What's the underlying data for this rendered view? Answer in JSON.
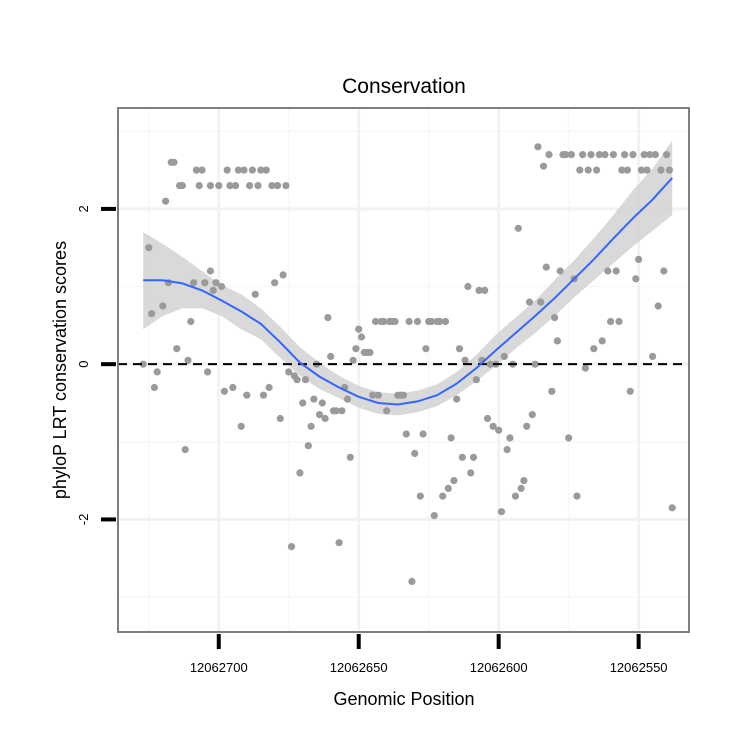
{
  "chart_data": {
    "type": "scatter",
    "title": "Conservation",
    "xlabel": "Genomic Position",
    "ylabel": "phyloP LRT conservation scores",
    "x_reversed": true,
    "xlim": [
      12062736,
      12062532
    ],
    "ylim": [
      -3.45,
      3.3
    ],
    "x_ticks": [
      {
        "value": 12062700,
        "label": "12062700"
      },
      {
        "value": 12062650,
        "label": "12062650"
      },
      {
        "value": 12062600,
        "label": "12062600"
      },
      {
        "value": 12062550,
        "label": "12062550"
      }
    ],
    "y_ticks": [
      {
        "value": -2,
        "label": "-2"
      },
      {
        "value": 0,
        "label": "0"
      },
      {
        "value": 2,
        "label": "2"
      }
    ],
    "reference_line": {
      "y": 0,
      "style": "dashed"
    },
    "points": [
      [
        12062727,
        0.0
      ],
      [
        12062725,
        1.5
      ],
      [
        12062724,
        0.65
      ],
      [
        12062723,
        -0.3
      ],
      [
        12062722,
        -0.1
      ],
      [
        12062720,
        0.75
      ],
      [
        12062719,
        2.1
      ],
      [
        12062718,
        1.05
      ],
      [
        12062717,
        2.6
      ],
      [
        12062716,
        2.6
      ],
      [
        12062715,
        0.2
      ],
      [
        12062714,
        2.3
      ],
      [
        12062713,
        2.3
      ],
      [
        12062712,
        -1.1
      ],
      [
        12062711,
        0.05
      ],
      [
        12062710,
        0.55
      ],
      [
        12062709,
        1.05
      ],
      [
        12062708,
        2.5
      ],
      [
        12062707,
        2.3
      ],
      [
        12062706,
        2.5
      ],
      [
        12062705,
        1.05
      ],
      [
        12062704,
        -0.1
      ],
      [
        12062703,
        2.3
      ],
      [
        12062703,
        1.2
      ],
      [
        12062702,
        0.95
      ],
      [
        12062701,
        1.05
      ],
      [
        12062700,
        2.3
      ],
      [
        12062699,
        1.0
      ],
      [
        12062698,
        -0.35
      ],
      [
        12062697,
        2.5
      ],
      [
        12062696,
        2.3
      ],
      [
        12062695,
        -0.3
      ],
      [
        12062694,
        2.3
      ],
      [
        12062693,
        2.5
      ],
      [
        12062692,
        -0.8
      ],
      [
        12062691,
        2.5
      ],
      [
        12062690,
        -0.4
      ],
      [
        12062689,
        2.3
      ],
      [
        12062688,
        2.5
      ],
      [
        12062687,
        0.9
      ],
      [
        12062686,
        2.3
      ],
      [
        12062685,
        2.5
      ],
      [
        12062684,
        -0.4
      ],
      [
        12062683,
        2.5
      ],
      [
        12062682,
        -0.3
      ],
      [
        12062681,
        2.3
      ],
      [
        12062680,
        1.05
      ],
      [
        12062679,
        2.3
      ],
      [
        12062678,
        -0.7
      ],
      [
        12062677,
        1.15
      ],
      [
        12062676,
        2.3
      ],
      [
        12062675,
        -0.1
      ],
      [
        12062674,
        -2.35
      ],
      [
        12062673,
        -0.15
      ],
      [
        12062672,
        -0.2
      ],
      [
        12062671,
        -1.4
      ],
      [
        12062670,
        -0.5
      ],
      [
        12062669,
        -0.2
      ],
      [
        12062668,
        -1.05
      ],
      [
        12062667,
        -0.8
      ],
      [
        12062666,
        -0.45
      ],
      [
        12062665,
        0.0
      ],
      [
        12062664,
        -0.65
      ],
      [
        12062663,
        -0.5
      ],
      [
        12062662,
        -0.7
      ],
      [
        12062661,
        0.6
      ],
      [
        12062660,
        0.1
      ],
      [
        12062659,
        -0.6
      ],
      [
        12062658,
        -0.6
      ],
      [
        12062657,
        -2.3
      ],
      [
        12062656,
        -0.6
      ],
      [
        12062655,
        -0.3
      ],
      [
        12062654,
        -0.45
      ],
      [
        12062653,
        -1.2
      ],
      [
        12062652,
        0.05
      ],
      [
        12062651,
        0.2
      ],
      [
        12062650,
        0.45
      ],
      [
        12062649,
        0.35
      ],
      [
        12062648,
        0.15
      ],
      [
        12062647,
        0.15
      ],
      [
        12062646,
        0.15
      ],
      [
        12062645,
        -0.4
      ],
      [
        12062644,
        0.55
      ],
      [
        12062643,
        -0.4
      ],
      [
        12062642,
        0.55
      ],
      [
        12062641,
        0.55
      ],
      [
        12062640,
        -0.6
      ],
      [
        12062639,
        0.55
      ],
      [
        12062638,
        0.55
      ],
      [
        12062637,
        0.55
      ],
      [
        12062636,
        -0.4
      ],
      [
        12062635,
        -0.4
      ],
      [
        12062634,
        -0.4
      ],
      [
        12062633,
        -0.9
      ],
      [
        12062632,
        0.55
      ],
      [
        12062631,
        -2.8
      ],
      [
        12062630,
        -1.15
      ],
      [
        12062629,
        0.55
      ],
      [
        12062628,
        -1.7
      ],
      [
        12062627,
        -0.9
      ],
      [
        12062626,
        0.2
      ],
      [
        12062625,
        0.55
      ],
      [
        12062624,
        0.55
      ],
      [
        12062623,
        -1.95
      ],
      [
        12062622,
        0.55
      ],
      [
        12062621,
        0.55
      ],
      [
        12062620,
        -1.7
      ],
      [
        12062619,
        0.55
      ],
      [
        12062618,
        -1.6
      ],
      [
        12062617,
        -0.95
      ],
      [
        12062616,
        -1.5
      ],
      [
        12062615,
        -0.45
      ],
      [
        12062614,
        0.2
      ],
      [
        12062613,
        -1.2
      ],
      [
        12062612,
        0.05
      ],
      [
        12062611,
        1.0
      ],
      [
        12062610,
        -1.4
      ],
      [
        12062609,
        -1.2
      ],
      [
        12062608,
        -0.2
      ],
      [
        12062607,
        0.95
      ],
      [
        12062606,
        0.05
      ],
      [
        12062605,
        0.95
      ],
      [
        12062604,
        -0.7
      ],
      [
        12062603,
        0.0
      ],
      [
        12062602,
        -0.8
      ],
      [
        12062601,
        0.0
      ],
      [
        12062600,
        -0.85
      ],
      [
        12062599,
        -1.9
      ],
      [
        12062598,
        0.1
      ],
      [
        12062597,
        -1.1
      ],
      [
        12062596,
        -0.95
      ],
      [
        12062595,
        0.0
      ],
      [
        12062594,
        -1.7
      ],
      [
        12062593,
        1.75
      ],
      [
        12062592,
        -1.6
      ],
      [
        12062591,
        -1.5
      ],
      [
        12062590,
        -0.8
      ],
      [
        12062589,
        0.8
      ],
      [
        12062588,
        -0.65
      ],
      [
        12062587,
        0.0
      ],
      [
        12062586,
        2.8
      ],
      [
        12062585,
        0.8
      ],
      [
        12062584,
        2.55
      ],
      [
        12062583,
        1.25
      ],
      [
        12062582,
        2.7
      ],
      [
        12062581,
        -0.35
      ],
      [
        12062580,
        0.6
      ],
      [
        12062579,
        0.3
      ],
      [
        12062578,
        1.2
      ],
      [
        12062577,
        2.7
      ],
      [
        12062576,
        2.7
      ],
      [
        12062575,
        -0.95
      ],
      [
        12062574,
        2.7
      ],
      [
        12062573,
        1.1
      ],
      [
        12062572,
        -1.7
      ],
      [
        12062571,
        2.5
      ],
      [
        12062570,
        2.7
      ],
      [
        12062569,
        -0.05
      ],
      [
        12062568,
        2.5
      ],
      [
        12062567,
        2.7
      ],
      [
        12062566,
        0.2
      ],
      [
        12062565,
        2.5
      ],
      [
        12062564,
        2.7
      ],
      [
        12062563,
        0.3
      ],
      [
        12062562,
        2.7
      ],
      [
        12062561,
        1.2
      ],
      [
        12062560,
        0.55
      ],
      [
        12062559,
        2.7
      ],
      [
        12062558,
        1.2
      ],
      [
        12062557,
        0.55
      ],
      [
        12062556,
        2.5
      ],
      [
        12062555,
        2.7
      ],
      [
        12062554,
        2.5
      ],
      [
        12062553,
        -0.35
      ],
      [
        12062552,
        2.7
      ],
      [
        12062551,
        1.1
      ],
      [
        12062550,
        1.35
      ],
      [
        12062549,
        2.5
      ],
      [
        12062548,
        2.7
      ],
      [
        12062547,
        2.5
      ],
      [
        12062546,
        2.7
      ],
      [
        12062545,
        0.1
      ],
      [
        12062544,
        2.7
      ],
      [
        12062543,
        0.75
      ],
      [
        12062542,
        2.5
      ],
      [
        12062541,
        1.2
      ],
      [
        12062540,
        2.7
      ],
      [
        12062539,
        2.5
      ],
      [
        12062538,
        -1.85
      ]
    ],
    "smooth": {
      "method": "loess",
      "x": [
        12062727,
        12062720,
        12062713,
        12062706,
        12062699,
        12062692,
        12062685,
        12062678,
        12062671,
        12062664,
        12062657,
        12062650,
        12062643,
        12062636,
        12062629,
        12062622,
        12062615,
        12062608,
        12062601,
        12062594,
        12062587,
        12062580,
        12062573,
        12062566,
        12062559,
        12062552,
        12062545,
        12062538
      ],
      "y": [
        1.08,
        1.08,
        1.04,
        0.95,
        0.82,
        0.68,
        0.52,
        0.28,
        0.02,
        -0.16,
        -0.3,
        -0.42,
        -0.5,
        -0.52,
        -0.48,
        -0.4,
        -0.25,
        -0.05,
        0.18,
        0.4,
        0.62,
        0.85,
        1.1,
        1.35,
        1.62,
        1.88,
        2.12,
        2.4
      ],
      "lower": [
        0.45,
        0.62,
        0.72,
        0.72,
        0.62,
        0.45,
        0.32,
        0.08,
        -0.15,
        -0.32,
        -0.44,
        -0.56,
        -0.64,
        -0.66,
        -0.62,
        -0.54,
        -0.4,
        -0.22,
        -0.02,
        0.2,
        0.4,
        0.62,
        0.86,
        1.08,
        1.3,
        1.52,
        1.72,
        1.92
      ],
      "upper": [
        1.7,
        1.55,
        1.38,
        1.2,
        1.02,
        0.9,
        0.72,
        0.48,
        0.22,
        0.02,
        -0.15,
        -0.28,
        -0.36,
        -0.38,
        -0.34,
        -0.26,
        -0.1,
        0.12,
        0.38,
        0.6,
        0.82,
        1.08,
        1.34,
        1.62,
        1.92,
        2.24,
        2.52,
        2.88
      ]
    },
    "colors": {
      "points": "#9a9a9a",
      "smooth": "#3366ff",
      "ribbon": "#d2d2d2"
    }
  }
}
